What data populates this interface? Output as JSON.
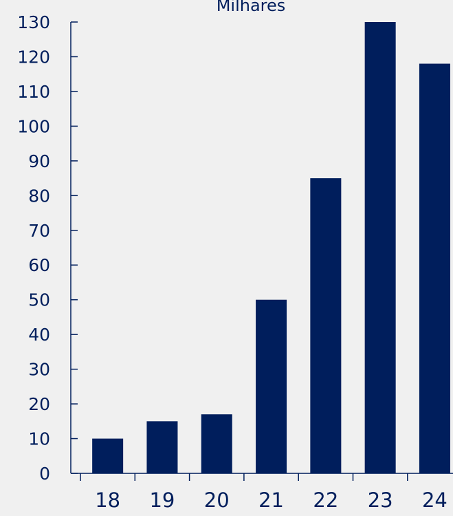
{
  "chart_data": {
    "type": "bar",
    "title": "Milhares",
    "categories": [
      "18",
      "19",
      "20",
      "21",
      "22",
      "23",
      "24"
    ],
    "values": [
      10,
      15,
      17,
      50,
      85,
      130,
      118
    ],
    "ylim": [
      0,
      130
    ],
    "yticks": [
      0,
      10,
      20,
      30,
      40,
      50,
      60,
      70,
      80,
      90,
      100,
      110,
      120,
      130
    ],
    "grid": false,
    "colors": {
      "bar": "#001e5c",
      "axis": "#001e5c",
      "text": "#001e5c",
      "background": "#f0f0f0"
    }
  }
}
